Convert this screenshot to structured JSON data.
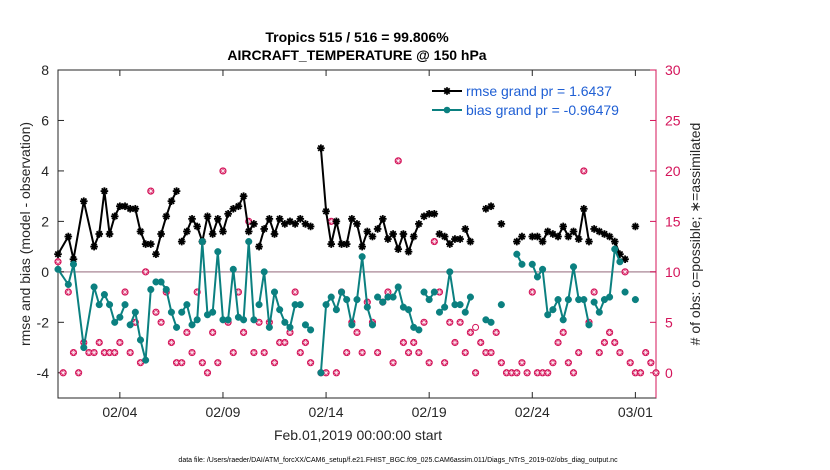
{
  "chart_data": {
    "type": "line",
    "title": "Tropics 515 / 516 = 99.806%",
    "subtitle": "AIRCRAFT_TEMPERATURE @ 150 hPa",
    "xlabel": "Feb.01,2019 00:00:00 start",
    "ylabel": "rmse and bias (model - observation)",
    "ylabel_right": "# of obs: o=possible; ∗=assimilated",
    "xlim": [
      1,
      30
    ],
    "ylim": [
      -5,
      8
    ],
    "ylim_right": [
      -2.5,
      30
    ],
    "x_tick_values": [
      4,
      9,
      14,
      19,
      24,
      29
    ],
    "x_tick_labels": [
      "02/04",
      "02/09",
      "02/14",
      "02/19",
      "02/24",
      "03/01"
    ],
    "y_ticks": [
      -4,
      -2,
      0,
      2,
      4,
      6,
      8
    ],
    "y_ticks_right": [
      0,
      5,
      10,
      15,
      20,
      25,
      30
    ],
    "zero_line": 0,
    "colors": {
      "rmse": "#000000",
      "bias": "#0b8080",
      "obs": "#d4145a",
      "right_axis": "#d4145a",
      "legend_text": "#1f5fd4"
    },
    "legend": [
      {
        "name": "rmse",
        "label": "rmse grand pr = 1.6437"
      },
      {
        "name": "bias",
        "label": "bias grand pr = -0.96479"
      }
    ],
    "series": [
      {
        "name": "rmse",
        "marker": "asterisk",
        "segments": [
          {
            "x": [
              1.0,
              1.5,
              1.75,
              2.25,
              2.75,
              3.0,
              3.25,
              3.5,
              3.75,
              4.0,
              4.25
            ],
            "values": [
              0.7,
              1.4,
              0.5,
              2.8,
              1.0,
              1.5,
              3.2,
              1.5,
              2.2,
              2.6,
              2.6
            ]
          },
          {
            "x": [
              4.5,
              4.75,
              5.0,
              5.25,
              5.5
            ],
            "values": [
              2.5,
              2.5,
              1.6,
              1.1,
              1.1
            ]
          },
          {
            "x": [
              5.75,
              6.0,
              6.25,
              6.5,
              6.75
            ],
            "values": [
              0.7,
              1.5,
              2.2,
              2.8,
              3.2
            ]
          },
          {
            "x": [
              7.0,
              7.25,
              7.5,
              7.75,
              8.0,
              8.25,
              8.5,
              8.75,
              9.0,
              9.25,
              9.5,
              9.75,
              10.0,
              10.25,
              10.5
            ],
            "values": [
              1.2,
              1.6,
              2.1,
              1.8,
              1.2,
              2.2,
              1.5,
              2.1,
              1.6,
              2.3,
              2.5,
              2.6,
              3.0,
              1.6,
              1.9
            ]
          },
          {
            "x": [
              10.75,
              11.0,
              11.25,
              11.5,
              11.75,
              12.0,
              12.25,
              12.5,
              12.75
            ],
            "values": [
              1.0,
              1.7,
              2.1,
              1.5,
              2.1,
              1.9,
              2.0,
              1.9,
              2.1
            ]
          },
          {
            "x": [
              13.0,
              13.25
            ],
            "values": [
              1.9,
              1.8
            ]
          },
          {
            "x": [
              13.75,
              14.0,
              14.25,
              14.5,
              14.75,
              15.0,
              15.25,
              15.5,
              15.75,
              16.0,
              16.25
            ],
            "values": [
              4.9,
              2.4,
              1.1,
              2.0,
              1.1,
              1.1,
              2.1,
              1.9,
              1.0,
              1.6,
              1.4
            ]
          },
          {
            "x": [
              16.5,
              16.75,
              17.0,
              17.25,
              17.5,
              17.75,
              18.0,
              18.25,
              18.5
            ],
            "values": [
              1.7,
              2.1,
              1.3,
              1.5,
              0.9,
              1.5,
              0.8,
              1.4,
              1.9
            ]
          },
          {
            "x": [
              18.75,
              19.0,
              19.25
            ],
            "values": [
              2.2,
              2.3,
              2.3
            ]
          },
          {
            "x": [
              19.5,
              19.75,
              20.0,
              20.25,
              20.5
            ],
            "values": [
              1.5,
              1.4,
              1.1,
              1.3,
              1.3
            ]
          },
          {
            "x": [
              20.75,
              21.0
            ],
            "values": [
              1.7,
              1.2
            ]
          },
          {
            "x": [
              21.75,
              22.0
            ],
            "values": [
              2.5,
              2.6
            ]
          },
          {
            "x": [
              22.5
            ],
            "values": [
              1.9
            ]
          },
          {
            "x": [
              23.25,
              23.5
            ],
            "values": [
              1.2,
              1.4
            ]
          },
          {
            "x": [
              24.0,
              24.25,
              24.5,
              24.75,
              25.0,
              25.25,
              25.5,
              25.75,
              26.0,
              26.25,
              26.5,
              26.75
            ],
            "values": [
              1.4,
              1.4,
              1.2,
              1.6,
              1.5,
              1.4,
              1.8,
              1.4,
              1.6,
              1.3,
              2.5,
              1.2
            ]
          },
          {
            "x": [
              27.0,
              27.25,
              27.5,
              27.75,
              28.0,
              28.25
            ],
            "values": [
              1.7,
              1.6,
              1.5,
              1.4,
              1.2,
              0.7
            ]
          },
          {
            "x": [
              28.5
            ],
            "values": [
              0.5
            ]
          },
          {
            "x": [
              29.0
            ],
            "values": [
              1.8
            ]
          }
        ]
      },
      {
        "name": "bias",
        "marker": "dot",
        "segments": [
          {
            "x": [
              1.0,
              1.5,
              1.75,
              2.25,
              2.75,
              3.0,
              3.25,
              3.5,
              3.75,
              4.0,
              4.25
            ],
            "values": [
              0.1,
              -0.5,
              0.3,
              -3.0,
              -0.6,
              -1.3,
              -0.9,
              -1.3,
              -2.0,
              -1.8,
              -1.3
            ]
          },
          {
            "x": [
              4.5,
              4.75,
              5.0,
              5.25,
              5.5
            ],
            "values": [
              -2.1,
              -1.6,
              -2.7,
              -3.5,
              -0.7
            ]
          },
          {
            "x": [
              5.75,
              6.0,
              6.25,
              6.5,
              6.75
            ],
            "values": [
              -0.4,
              -0.4,
              -0.7,
              -1.6,
              -2.2
            ]
          },
          {
            "x": [
              7.0,
              7.25,
              7.5,
              7.75,
              8.0,
              8.25,
              8.5,
              8.75,
              9.0,
              9.25,
              9.5,
              9.75,
              10.0,
              10.25,
              10.5
            ],
            "values": [
              -1.6,
              -1.3,
              -2.1,
              -1.9,
              1.2,
              -1.7,
              -1.6,
              0.8,
              -1.9,
              -1.9,
              0.1,
              -1.8,
              -1.9,
              1.2,
              -1.9
            ]
          },
          {
            "x": [
              10.75,
              11.0,
              11.25,
              11.5,
              11.75,
              12.0,
              12.25,
              12.5,
              12.75
            ],
            "values": [
              -1.3,
              0.0,
              -2.2,
              -0.8,
              -1.5,
              -2.0,
              -2.2,
              -1.3,
              -1.3
            ]
          },
          {
            "x": [
              13.0,
              13.25
            ],
            "values": [
              -2.1,
              -2.3
            ]
          },
          {
            "x": [
              13.75,
              14.0,
              14.25,
              14.5,
              14.75,
              15.0,
              15.25,
              15.5,
              15.75,
              16.0,
              16.25
            ],
            "values": [
              -4.0,
              -1.3,
              -1.0,
              -1.5,
              -0.8,
              -1.1,
              -2.1,
              -1.1,
              0.6,
              -1.4,
              -2.1
            ]
          },
          {
            "x": [
              16.5,
              16.75,
              17.0,
              17.25,
              17.5,
              17.75,
              18.0,
              18.25,
              18.5
            ],
            "values": [
              -1.0,
              -1.2,
              -1.0,
              -1.0,
              -0.6,
              -1.4,
              -1.5,
              -2.2,
              -2.3
            ]
          },
          {
            "x": [
              18.75,
              19.0,
              19.25
            ],
            "values": [
              -0.8,
              -1.1,
              -0.8
            ]
          },
          {
            "x": [
              19.5,
              19.75,
              20.0,
              20.25,
              20.5
            ],
            "values": [
              -1.6,
              -1.4,
              0.0,
              -1.3,
              -1.3
            ]
          },
          {
            "x": [
              20.75,
              21.0
            ],
            "values": [
              -1.6,
              -1.0
            ]
          },
          {
            "x": [
              21.75,
              22.0
            ],
            "values": [
              -1.9,
              -2.0
            ]
          },
          {
            "x": [
              22.5
            ],
            "values": [
              -1.3
            ]
          },
          {
            "x": [
              23.25,
              23.5
            ],
            "values": [
              0.7,
              0.3
            ]
          },
          {
            "x": [
              24.0,
              24.25,
              24.5,
              24.75,
              25.0,
              25.25,
              25.5,
              25.75,
              26.0,
              26.25,
              26.5,
              26.75
            ],
            "values": [
              0.3,
              -0.2,
              0.1,
              -1.7,
              -1.5,
              -1.1,
              -1.9,
              -1.1,
              0.2,
              -1.1,
              -1.1,
              -2.1
            ]
          },
          {
            "x": [
              27.0,
              27.25,
              27.5,
              27.75,
              28.0,
              28.25
            ],
            "values": [
              -1.2,
              -1.6,
              -1.1,
              -1.0,
              0.9,
              0.4
            ]
          },
          {
            "x": [
              28.5
            ],
            "values": [
              -0.8
            ]
          },
          {
            "x": [
              29.0
            ],
            "values": [
              -1.1
            ]
          }
        ]
      },
      {
        "name": "obs_assimilated",
        "axis": "right",
        "marker": "asterisk-circle",
        "x": [
          1.0,
          1.25,
          1.5,
          1.75,
          2.0,
          2.25,
          2.5,
          2.75,
          3.0,
          3.25,
          3.5,
          3.75,
          4.0,
          4.25,
          4.5,
          4.75,
          5.0,
          5.25,
          5.5,
          5.75,
          6.0,
          6.25,
          6.5,
          6.75,
          7.0,
          7.25,
          7.5,
          7.75,
          8.0,
          8.25,
          8.5,
          8.75,
          9.0,
          9.25,
          9.5,
          9.75,
          10.0,
          10.25,
          10.5,
          10.75,
          11.0,
          11.25,
          11.5,
          11.75,
          12.0,
          12.25,
          12.5,
          12.75,
          13.0,
          13.25,
          13.75,
          14.0,
          14.25,
          14.5,
          14.75,
          15.0,
          15.25,
          15.5,
          15.75,
          16.0,
          16.25,
          16.5,
          16.75,
          17.0,
          17.25,
          17.5,
          17.75,
          18.0,
          18.25,
          18.5,
          18.75,
          19.0,
          19.25,
          19.5,
          19.75,
          20.0,
          20.25,
          20.5,
          20.75,
          21.0,
          21.25,
          21.5,
          21.75,
          22.0,
          22.25,
          22.5,
          22.75,
          23.0,
          23.25,
          23.5,
          23.75,
          24.0,
          24.25,
          24.5,
          24.75,
          25.0,
          25.25,
          25.5,
          25.75,
          26.0,
          26.25,
          26.5,
          26.75,
          27.0,
          27.25,
          27.5,
          27.75,
          28.0,
          28.25,
          28.5,
          28.75,
          29.0,
          29.25,
          29.5,
          29.75,
          30.0
        ],
        "values": [
          11,
          0,
          8,
          2,
          0,
          3,
          2,
          2,
          3,
          2,
          2,
          2,
          3,
          8,
          2,
          5,
          1,
          10,
          18,
          6,
          5,
          8,
          3,
          1,
          1,
          4,
          2,
          8,
          1,
          0,
          4,
          1,
          20,
          5,
          2,
          8,
          4,
          15,
          2,
          5,
          2,
          5,
          1,
          3,
          3,
          4,
          8,
          2,
          3,
          1,
          0,
          0,
          15,
          0,
          8,
          2,
          5,
          4,
          2,
          7,
          5,
          2,
          7,
          8,
          1,
          21,
          3,
          2,
          3,
          2,
          5,
          1,
          13,
          8,
          1,
          5,
          3,
          5,
          2,
          4,
          0,
          3,
          2,
          2,
          4,
          1,
          0,
          0,
          0,
          1,
          0,
          8,
          0,
          0,
          0,
          1,
          3,
          4,
          1,
          0,
          2,
          20,
          5,
          8,
          2,
          3,
          4,
          3,
          2,
          10,
          1,
          0,
          0,
          2,
          1,
          0
        ]
      },
      {
        "name": "obs_possible",
        "axis": "right",
        "marker": "circle",
        "x": [
          21.25
        ],
        "values": [
          4.5
        ]
      }
    ]
  },
  "footer": "data file: /Users/raeder/DAI/ATM_forcXX/CAM6_setup/f.e21.FHIST_BGC.f09_025.CAM6assim.011/Diags_NTrS_2019-02/obs_diag_output.nc"
}
